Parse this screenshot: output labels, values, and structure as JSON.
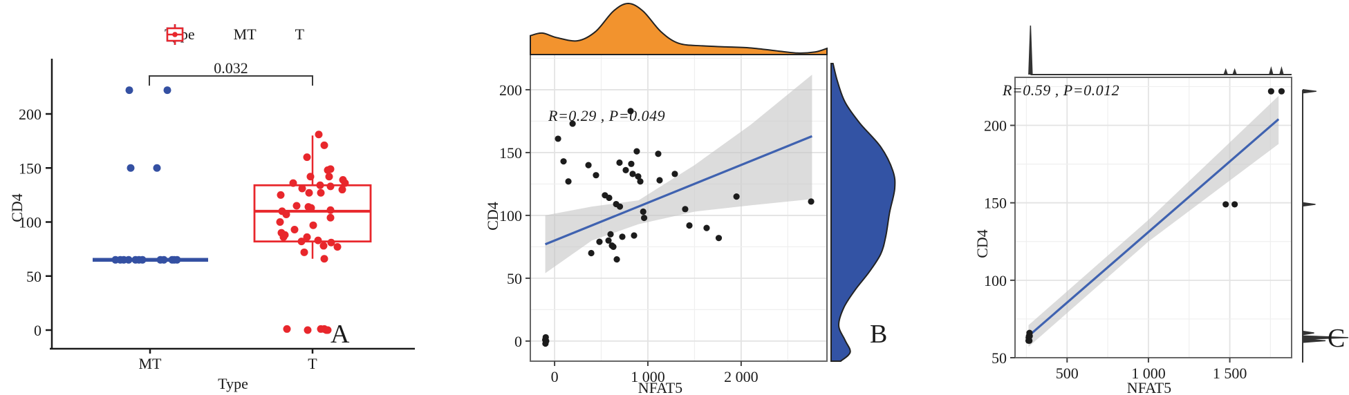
{
  "colors": {
    "mt_blue": "#3450a2",
    "t_red": "#e8272c",
    "point_black": "#1c1c1c",
    "regression_blue": "#3f62b0",
    "ci_gray": "#c4c4c4",
    "density_orange": "#f2932e",
    "density_blue": "#3353a4",
    "grid_major": "#e3e3e3",
    "grid_minor": "#efefef",
    "panel_border": "#666666",
    "axis_black": "#1a1a1a"
  },
  "chart_data": [
    {
      "type": "box-jitter",
      "panel_label": "A",
      "legend": {
        "title": "Type",
        "entries": [
          {
            "label": "MT",
            "color": "#3450a2"
          },
          {
            "label": "T",
            "color": "#e8272c"
          }
        ]
      },
      "xlabel": "Type",
      "ylabel": "CD4",
      "categories": [
        "MT",
        "T"
      ],
      "yticks": [
        0,
        50,
        100,
        150,
        200
      ],
      "ylim": [
        -20,
        255
      ],
      "significance": {
        "label": "0.032",
        "between": [
          "MT",
          "T"
        ]
      },
      "groups": [
        {
          "name": "MT",
          "color": "#3450a2",
          "box": {
            "q1": 65,
            "median": 65,
            "q3": 65,
            "whisker_low": 65,
            "whisker_high": 65,
            "collapsed": true
          },
          "points": [
            [
              -30,
              222
            ],
            [
              25,
              222
            ],
            [
              -28,
              150
            ],
            [
              10,
              150
            ],
            [
              -50,
              65
            ],
            [
              -43,
              65
            ],
            [
              -38,
              65
            ],
            [
              -31,
              65
            ],
            [
              -21,
              65
            ],
            [
              -16,
              65
            ],
            [
              -11,
              65
            ],
            [
              15,
              65
            ],
            [
              20,
              65
            ],
            [
              32,
              65
            ],
            [
              35,
              65
            ],
            [
              39,
              65
            ]
          ]
        },
        {
          "name": "T",
          "color": "#e8272c",
          "box": {
            "q1": 82,
            "median": 110,
            "q3": 134,
            "whisker_low": 66,
            "whisker_high": 180
          },
          "points": [
            [
              9,
              181
            ],
            [
              17,
              171
            ],
            [
              -8,
              160
            ],
            [
              22,
              148
            ],
            [
              26,
              149
            ],
            [
              -3,
              142
            ],
            [
              24,
              142
            ],
            [
              -28,
              136
            ],
            [
              44,
              139
            ],
            [
              47,
              136
            ],
            [
              -15,
              131
            ],
            [
              -5,
              127
            ],
            [
              11,
              134
            ],
            [
              26,
              133
            ],
            [
              43,
              130
            ],
            [
              -46,
              125
            ],
            [
              12,
              127
            ],
            [
              -23,
              115
            ],
            [
              -6,
              114
            ],
            [
              -2,
              113
            ],
            [
              26,
              111
            ],
            [
              -44,
              110
            ],
            [
              -38,
              107
            ],
            [
              1,
              97
            ],
            [
              26,
              104
            ],
            [
              -47,
              100
            ],
            [
              -45,
              90
            ],
            [
              -26,
              93
            ],
            [
              -42,
              86
            ],
            [
              -40,
              88
            ],
            [
              -16,
              82
            ],
            [
              -8,
              86
            ],
            [
              8,
              83
            ],
            [
              16,
              78
            ],
            [
              27,
              81
            ],
            [
              36,
              77
            ],
            [
              -12,
              72
            ],
            [
              17,
              66
            ],
            [
              -37,
              1
            ],
            [
              -7,
              0
            ],
            [
              12,
              1
            ],
            [
              17,
              1
            ],
            [
              20,
              0
            ],
            [
              22,
              0
            ]
          ]
        }
      ]
    },
    {
      "type": "scatter-marginal",
      "panel_label": "B",
      "annotation": "R=0.29 , P=0.049",
      "xlabel": "NFAT5",
      "ylabel": "CD4",
      "xticks": [
        0,
        1000,
        2000
      ],
      "xtick_labels": [
        "0",
        "1 000",
        "2 000"
      ],
      "yticks": [
        0,
        50,
        100,
        150,
        200
      ],
      "xlim": [
        -260,
        2920
      ],
      "ylim": [
        -16,
        228
      ],
      "x_minor_step": 500,
      "y_minor_step": 25,
      "points": [
        [
          -100,
          1
        ],
        [
          -95,
          3
        ],
        [
          -90,
          0
        ],
        [
          -98,
          -2
        ],
        [
          37,
          161
        ],
        [
          96,
          143
        ],
        [
          148,
          127
        ],
        [
          193,
          173
        ],
        [
          363,
          140
        ],
        [
          393,
          70
        ],
        [
          444,
          132
        ],
        [
          481,
          79
        ],
        [
          540,
          116
        ],
        [
          578,
          80
        ],
        [
          585,
          114
        ],
        [
          600,
          85
        ],
        [
          615,
          76
        ],
        [
          630,
          75
        ],
        [
          660,
          109
        ],
        [
          667,
          65
        ],
        [
          696,
          142
        ],
        [
          700,
          107
        ],
        [
          726,
          83
        ],
        [
          763,
          136
        ],
        [
          815,
          183
        ],
        [
          822,
          141
        ],
        [
          837,
          133
        ],
        [
          852,
          84
        ],
        [
          881,
          151
        ],
        [
          896,
          131
        ],
        [
          919,
          127
        ],
        [
          950,
          103
        ],
        [
          960,
          98
        ],
        [
          1111,
          149
        ],
        [
          1126,
          128
        ],
        [
          1289,
          133
        ],
        [
          1400,
          105
        ],
        [
          1445,
          92
        ],
        [
          1630,
          90
        ],
        [
          1760,
          82
        ],
        [
          1950,
          115
        ],
        [
          2750,
          111
        ]
      ],
      "regression": {
        "x": [
          -100,
          2760
        ],
        "y": [
          77,
          163
        ]
      },
      "ci_upper": [
        [
          -100,
          100
        ],
        [
          400,
          107
        ],
        [
          900,
          112
        ],
        [
          1500,
          140
        ],
        [
          2100,
          172
        ],
        [
          2760,
          212
        ]
      ],
      "ci_lower": [
        [
          -100,
          54
        ],
        [
          400,
          80
        ],
        [
          900,
          93
        ],
        [
          1500,
          103
        ],
        [
          2100,
          108
        ],
        [
          2760,
          113
        ]
      ],
      "marginal_top": {
        "style": "density",
        "color": "#f2932e",
        "profile": [
          [
            0,
            0.37
          ],
          [
            0.04,
            0.42
          ],
          [
            0.09,
            0.33
          ],
          [
            0.16,
            0.27
          ],
          [
            0.22,
            0.45
          ],
          [
            0.28,
            0.85
          ],
          [
            0.33,
            1.0
          ],
          [
            0.38,
            0.85
          ],
          [
            0.44,
            0.45
          ],
          [
            0.5,
            0.22
          ],
          [
            0.58,
            0.17
          ],
          [
            0.66,
            0.15
          ],
          [
            0.74,
            0.13
          ],
          [
            0.82,
            0.08
          ],
          [
            0.9,
            0.03
          ],
          [
            0.96,
            0.05
          ],
          [
            1.0,
            0.12
          ]
        ]
      },
      "marginal_right": {
        "style": "density",
        "color": "#3353a4",
        "profile": [
          [
            0,
            0.03
          ],
          [
            0.06,
            0.1
          ],
          [
            0.13,
            0.22
          ],
          [
            0.2,
            0.45
          ],
          [
            0.28,
            0.78
          ],
          [
            0.36,
            0.97
          ],
          [
            0.42,
            1.0
          ],
          [
            0.5,
            0.92
          ],
          [
            0.58,
            0.86
          ],
          [
            0.64,
            0.78
          ],
          [
            0.7,
            0.6
          ],
          [
            0.76,
            0.38
          ],
          [
            0.82,
            0.2
          ],
          [
            0.88,
            0.12
          ],
          [
            0.93,
            0.22
          ],
          [
            0.97,
            0.3
          ],
          [
            1.0,
            0.15
          ]
        ]
      }
    },
    {
      "type": "scatter-marginal",
      "panel_label": "C",
      "annotation": "R=0.59 , P=0.012",
      "xlabel": "NFAT5",
      "ylabel": "CD4",
      "xticks": [
        500,
        1000,
        1500
      ],
      "xtick_labels": [
        "500",
        "1 000",
        "1 500"
      ],
      "yticks": [
        50,
        100,
        150,
        200
      ],
      "xlim": [
        180,
        1880
      ],
      "ylim": [
        50,
        231
      ],
      "x_minor_step": 250,
      "y_minor_step": 25,
      "points": [
        [
          263,
          61
        ],
        [
          266,
          64
        ],
        [
          269,
          66
        ],
        [
          264,
          63
        ],
        [
          268,
          61
        ],
        [
          270,
          64
        ],
        [
          1475,
          149
        ],
        [
          1530,
          149
        ],
        [
          1754,
          222
        ],
        [
          1818,
          222
        ]
      ],
      "regression": {
        "x": [
          263,
          1800
        ],
        "y": [
          64,
          204
        ]
      },
      "ci_upper": [
        [
          263,
          71
        ],
        [
          1000,
          139
        ],
        [
          1800,
          219
        ]
      ],
      "ci_lower": [
        [
          263,
          57
        ],
        [
          1000,
          125
        ],
        [
          1800,
          188
        ]
      ],
      "marginal_top": {
        "style": "spikes",
        "color": "#333333",
        "spikes": [
          [
            275,
            1.0
          ],
          [
            1475,
            0.1
          ],
          [
            1530,
            0.1
          ],
          [
            1754,
            0.13
          ],
          [
            1818,
            0.13
          ]
        ]
      },
      "marginal_right": {
        "style": "spikes",
        "color": "#333333",
        "spikes": [
          [
            222,
            0.3
          ],
          [
            149,
            0.28
          ],
          [
            66,
            0.25
          ],
          [
            63,
            1.0
          ],
          [
            61,
            0.5
          ]
        ]
      }
    }
  ]
}
